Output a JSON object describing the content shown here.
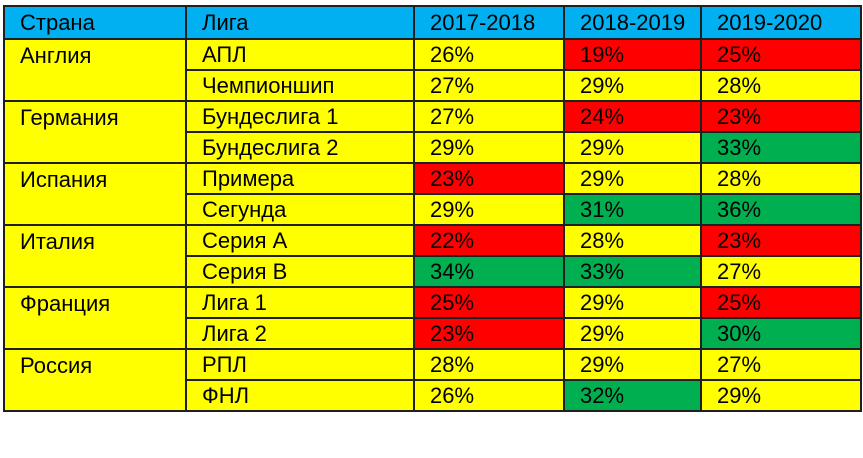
{
  "colors": {
    "header": "#00b0f0",
    "neutral": "#ffff00",
    "low": "#ff0000",
    "high": "#00b050"
  },
  "headers": [
    "Страна",
    "Лига",
    "2017-2018",
    "2018-2019",
    "2019-2020"
  ],
  "rows": [
    {
      "country": "Англия",
      "league": "АПЛ",
      "values": [
        "26%",
        "19%",
        "25%"
      ],
      "status": [
        "neutral",
        "low",
        "low"
      ]
    },
    {
      "country": "",
      "league": "Чемпионшип",
      "values": [
        "27%",
        "29%",
        "28%"
      ],
      "status": [
        "neutral",
        "neutral",
        "neutral"
      ]
    },
    {
      "country": "Германия",
      "league": "Бундеслига 1",
      "values": [
        "27%",
        "24%",
        "23%"
      ],
      "status": [
        "neutral",
        "low",
        "low"
      ]
    },
    {
      "country": "",
      "league": "Бундеслига 2",
      "values": [
        "29%",
        "29%",
        "33%"
      ],
      "status": [
        "neutral",
        "neutral",
        "high"
      ]
    },
    {
      "country": "Испания",
      "league": "Примера",
      "values": [
        "23%",
        "29%",
        "28%"
      ],
      "status": [
        "low",
        "neutral",
        "neutral"
      ]
    },
    {
      "country": "",
      "league": "Сегунда",
      "values": [
        "29%",
        "31%",
        "36%"
      ],
      "status": [
        "neutral",
        "high",
        "high"
      ]
    },
    {
      "country": "Италия",
      "league": "Серия А",
      "values": [
        "22%",
        "28%",
        "23%"
      ],
      "status": [
        "low",
        "neutral",
        "low"
      ]
    },
    {
      "country": "",
      "league": "Серия В",
      "values": [
        "34%",
        "33%",
        "27%"
      ],
      "status": [
        "high",
        "high",
        "neutral"
      ]
    },
    {
      "country": "Франция",
      "league": "Лига 1",
      "values": [
        "25%",
        "29%",
        "25%"
      ],
      "status": [
        "low",
        "neutral",
        "low"
      ]
    },
    {
      "country": "",
      "league": "Лига 2",
      "values": [
        "23%",
        "29%",
        "30%"
      ],
      "status": [
        "low",
        "neutral",
        "high"
      ]
    },
    {
      "country": "Россия",
      "league": "РПЛ",
      "values": [
        "28%",
        "29%",
        "27%"
      ],
      "status": [
        "neutral",
        "neutral",
        "neutral"
      ]
    },
    {
      "country": "",
      "league": "ФНЛ",
      "values": [
        "26%",
        "32%",
        "29%"
      ],
      "status": [
        "neutral",
        "high",
        "neutral"
      ]
    }
  ]
}
